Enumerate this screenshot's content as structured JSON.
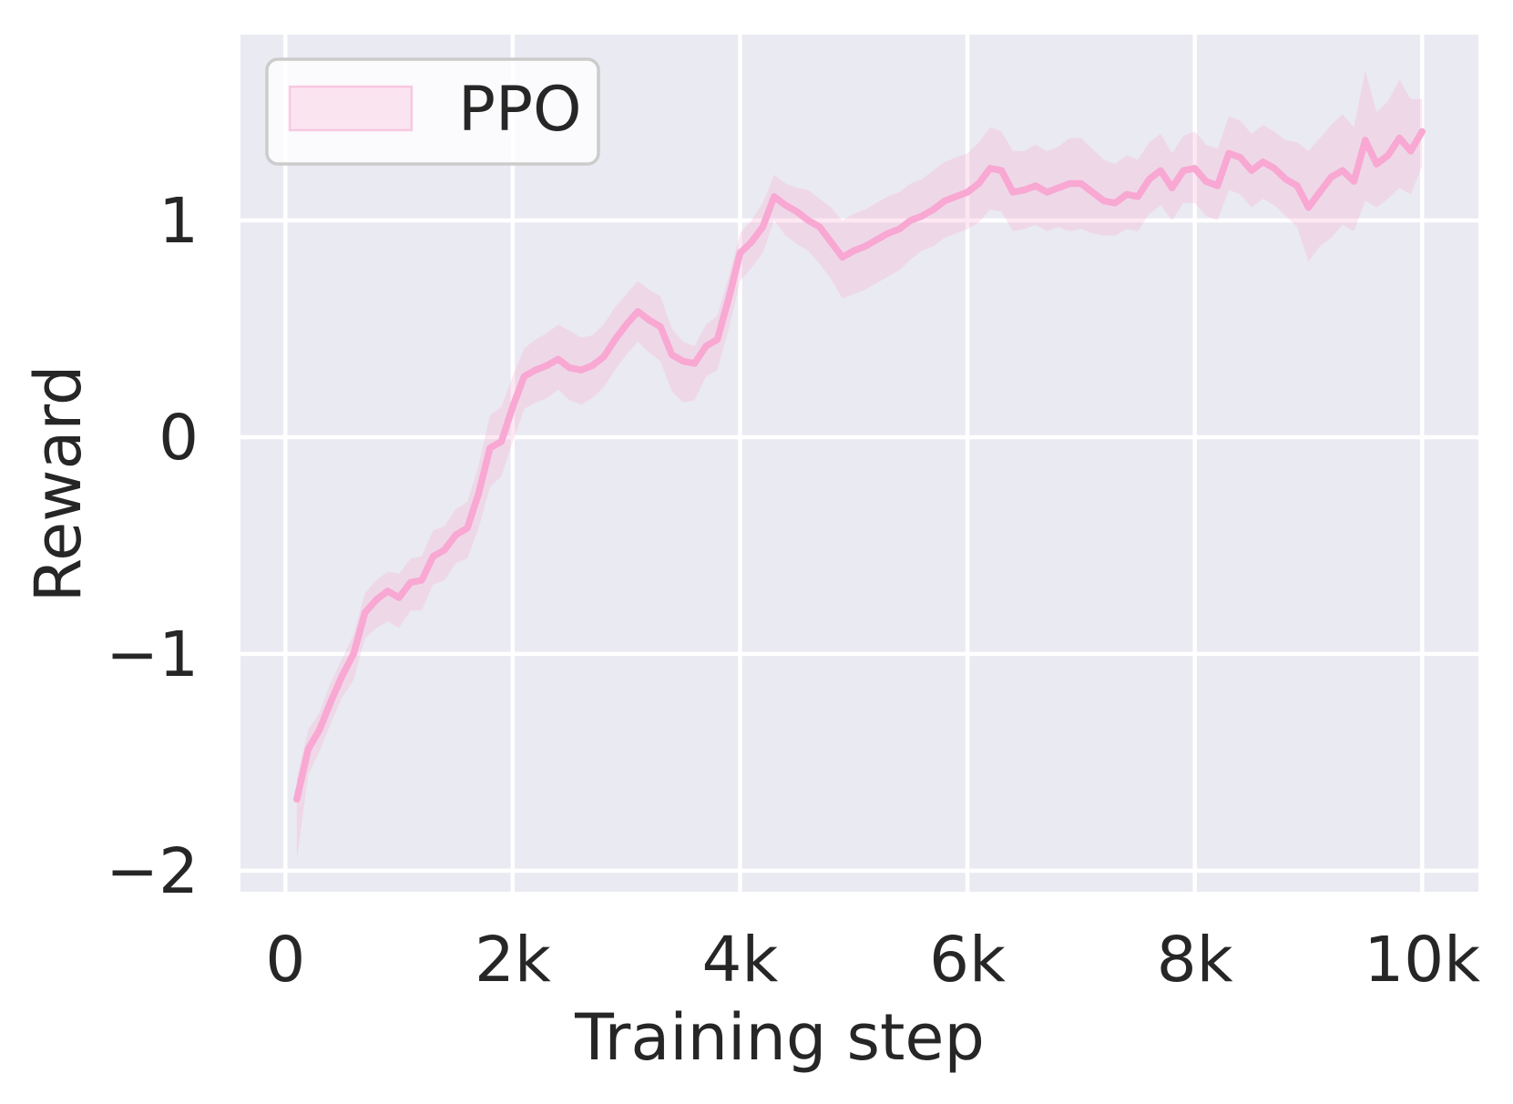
{
  "figure": {
    "background": "#ffffff",
    "axes_background": "#eaeaf2",
    "grid_color": "#ffffff",
    "text_color": "#262626",
    "line_color": "#f8a8d2",
    "band_opacity": 0.28,
    "legend_face": "#ffffff",
    "legend_edge": "#cccccc"
  },
  "legend": {
    "label": "PPO"
  },
  "chart_data": {
    "type": "line",
    "title": "",
    "xlabel": "Training step",
    "ylabel": "Reward",
    "xlim": [
      -395,
      10495
    ],
    "ylim": [
      -2.097,
      1.857
    ],
    "grid": true,
    "legend_position": "upper left",
    "x_ticks": [
      {
        "value": 0,
        "label": "0"
      },
      {
        "value": 2000,
        "label": "2k"
      },
      {
        "value": 4000,
        "label": "4k"
      },
      {
        "value": 6000,
        "label": "6k"
      },
      {
        "value": 8000,
        "label": "8k"
      },
      {
        "value": 10000,
        "label": "10k"
      }
    ],
    "y_ticks": [
      {
        "value": 1,
        "label": "1"
      },
      {
        "value": 0,
        "label": "0"
      },
      {
        "value": -1,
        "label": "−1"
      },
      {
        "value": -2,
        "label": "−2"
      }
    ],
    "series": [
      {
        "name": "PPO",
        "x": [
          100,
          200,
          300,
          400,
          500,
          600,
          700,
          800,
          900,
          1000,
          1100,
          1200,
          1300,
          1400,
          1500,
          1600,
          1700,
          1800,
          1900,
          2000,
          2100,
          2200,
          2300,
          2400,
          2500,
          2600,
          2700,
          2800,
          2900,
          3000,
          3100,
          3200,
          3300,
          3400,
          3500,
          3600,
          3700,
          3800,
          3900,
          4000,
          4100,
          4200,
          4300,
          4400,
          4500,
          4600,
          4700,
          4800,
          4900,
          5000,
          5100,
          5200,
          5300,
          5400,
          5500,
          5600,
          5700,
          5800,
          5900,
          6000,
          6100,
          6200,
          6300,
          6400,
          6500,
          6600,
          6700,
          6800,
          6900,
          7000,
          7100,
          7200,
          7300,
          7400,
          7500,
          7600,
          7700,
          7800,
          7900,
          8000,
          8100,
          8200,
          8300,
          8400,
          8500,
          8600,
          8700,
          8800,
          8900,
          9000,
          9100,
          9200,
          9300,
          9400,
          9500,
          9600,
          9700,
          9800,
          9900,
          10000
        ],
        "y": [
          -1.67,
          -1.44,
          -1.35,
          -1.22,
          -1.1,
          -1.0,
          -0.81,
          -0.75,
          -0.71,
          -0.74,
          -0.67,
          -0.66,
          -0.55,
          -0.52,
          -0.45,
          -0.42,
          -0.26,
          -0.05,
          -0.02,
          0.14,
          0.28,
          0.31,
          0.33,
          0.36,
          0.32,
          0.31,
          0.33,
          0.37,
          0.45,
          0.52,
          0.58,
          0.54,
          0.51,
          0.38,
          0.35,
          0.34,
          0.42,
          0.45,
          0.64,
          0.85,
          0.9,
          0.97,
          1.11,
          1.07,
          1.04,
          1.0,
          0.97,
          0.9,
          0.83,
          0.86,
          0.88,
          0.91,
          0.94,
          0.96,
          1.0,
          1.02,
          1.05,
          1.09,
          1.11,
          1.13,
          1.17,
          1.24,
          1.23,
          1.13,
          1.14,
          1.16,
          1.13,
          1.15,
          1.17,
          1.17,
          1.13,
          1.09,
          1.08,
          1.12,
          1.11,
          1.19,
          1.23,
          1.15,
          1.23,
          1.24,
          1.18,
          1.16,
          1.31,
          1.29,
          1.23,
          1.27,
          1.24,
          1.19,
          1.16,
          1.06,
          1.13,
          1.2,
          1.23,
          1.18,
          1.37,
          1.26,
          1.3,
          1.38,
          1.32,
          1.41
        ],
        "band_lower": [
          -1.95,
          -1.56,
          -1.45,
          -1.32,
          -1.2,
          -1.12,
          -0.93,
          -0.88,
          -0.85,
          -0.88,
          -0.8,
          -0.8,
          -0.68,
          -0.66,
          -0.58,
          -0.56,
          -0.42,
          -0.23,
          -0.18,
          -0.02,
          0.13,
          0.16,
          0.18,
          0.22,
          0.17,
          0.15,
          0.18,
          0.23,
          0.31,
          0.38,
          0.44,
          0.39,
          0.35,
          0.21,
          0.16,
          0.17,
          0.28,
          0.31,
          0.5,
          0.72,
          0.78,
          0.85,
          1.0,
          0.93,
          0.89,
          0.86,
          0.8,
          0.73,
          0.64,
          0.66,
          0.68,
          0.71,
          0.74,
          0.77,
          0.82,
          0.86,
          0.88,
          0.92,
          0.94,
          0.96,
          0.99,
          1.05,
          1.04,
          0.95,
          0.96,
          0.98,
          0.95,
          0.97,
          0.95,
          0.96,
          0.94,
          0.93,
          0.93,
          0.96,
          0.95,
          1.03,
          1.07,
          1.0,
          1.08,
          1.08,
          1.02,
          1.0,
          1.14,
          1.12,
          1.06,
          1.1,
          1.07,
          1.02,
          0.97,
          0.81,
          0.88,
          0.92,
          0.98,
          0.95,
          1.09,
          1.06,
          1.1,
          1.15,
          1.12,
          1.25
        ],
        "band_upper": [
          -1.58,
          -1.35,
          -1.27,
          -1.13,
          -1.02,
          -0.91,
          -0.72,
          -0.66,
          -0.62,
          -0.63,
          -0.56,
          -0.55,
          -0.43,
          -0.41,
          -0.33,
          -0.3,
          -0.13,
          0.1,
          0.14,
          0.28,
          0.41,
          0.45,
          0.48,
          0.52,
          0.49,
          0.46,
          0.47,
          0.52,
          0.6,
          0.66,
          0.72,
          0.68,
          0.65,
          0.5,
          0.44,
          0.42,
          0.52,
          0.56,
          0.74,
          0.94,
          1.0,
          1.08,
          1.21,
          1.17,
          1.15,
          1.14,
          1.1,
          1.06,
          1.0,
          1.03,
          1.05,
          1.08,
          1.11,
          1.13,
          1.17,
          1.19,
          1.23,
          1.27,
          1.29,
          1.31,
          1.36,
          1.43,
          1.41,
          1.32,
          1.32,
          1.35,
          1.32,
          1.34,
          1.38,
          1.38,
          1.33,
          1.28,
          1.26,
          1.3,
          1.28,
          1.36,
          1.4,
          1.31,
          1.39,
          1.41,
          1.35,
          1.33,
          1.48,
          1.46,
          1.4,
          1.44,
          1.41,
          1.37,
          1.36,
          1.32,
          1.38,
          1.44,
          1.49,
          1.43,
          1.69,
          1.5,
          1.55,
          1.65,
          1.56,
          1.56
        ]
      }
    ]
  }
}
